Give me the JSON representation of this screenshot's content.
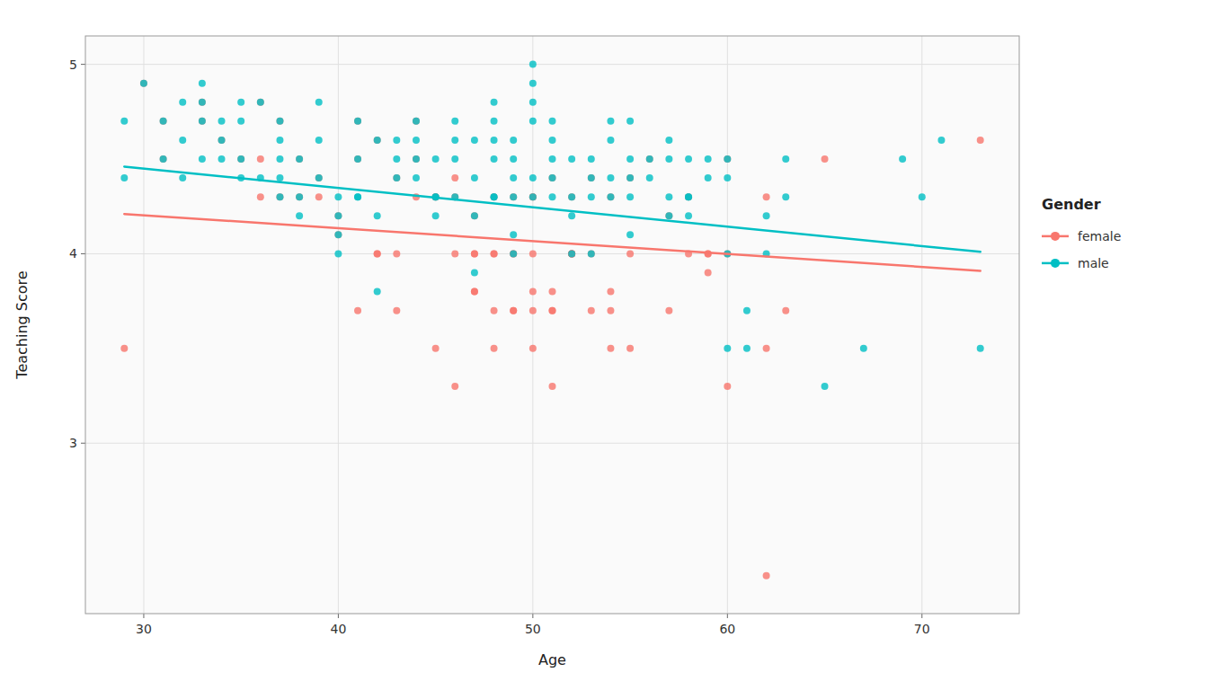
{
  "chart_data": {
    "type": "scatter",
    "xlabel": "Age",
    "ylabel": "Teaching Score",
    "legend_title": "Gender",
    "xlim": [
      27,
      75
    ],
    "ylim": [
      2.1,
      5.15
    ],
    "xticks": [
      30,
      40,
      50,
      60,
      70
    ],
    "yticks": [
      3,
      4,
      5
    ],
    "grid": true,
    "legend": "right",
    "series": [
      {
        "name": "female",
        "type": "scatter",
        "color": "#F8766D",
        "x": [
          36,
          36,
          39,
          41,
          41,
          42,
          42,
          43,
          43,
          44,
          44,
          45,
          45,
          46,
          46,
          46,
          47,
          47,
          47,
          47,
          48,
          48,
          48,
          48,
          49,
          49,
          49,
          49,
          50,
          50,
          50,
          50,
          50,
          51,
          51,
          51,
          51,
          52,
          52,
          52,
          52,
          53,
          53,
          54,
          54,
          54,
          55,
          55,
          57,
          58,
          59,
          59,
          60,
          60,
          62,
          62,
          29,
          30,
          31,
          31,
          33,
          33,
          34,
          35,
          36,
          37,
          37,
          38,
          38,
          39,
          40,
          40,
          41,
          42,
          43,
          44,
          45,
          46,
          47,
          48,
          49,
          50,
          51,
          52,
          53,
          54,
          55,
          56,
          57,
          58,
          59,
          60,
          62,
          63,
          65,
          73
        ],
        "values": [
          4.3,
          4.5,
          4.3,
          4.5,
          3.7,
          4.0,
          4.0,
          3.7,
          4.0,
          4.5,
          4.3,
          3.5,
          4.3,
          3.3,
          4.0,
          4.4,
          3.8,
          3.8,
          4.0,
          4.0,
          3.5,
          3.7,
          4.0,
          4.0,
          3.7,
          3.7,
          4.0,
          4.3,
          3.5,
          3.7,
          3.8,
          4.0,
          4.3,
          3.3,
          3.7,
          3.7,
          3.8,
          4.0,
          4.0,
          4.0,
          4.3,
          3.7,
          4.0,
          3.5,
          3.7,
          3.8,
          3.5,
          4.0,
          3.7,
          4.0,
          4.0,
          3.9,
          3.3,
          4.0,
          3.5,
          2.3,
          3.5,
          4.9,
          4.7,
          4.5,
          4.7,
          4.8,
          4.6,
          4.5,
          4.8,
          4.7,
          4.3,
          4.3,
          4.5,
          4.4,
          4.1,
          4.2,
          4.7,
          4.6,
          4.4,
          4.7,
          4.3,
          4.3,
          4.2,
          4.3,
          4.0,
          4.3,
          4.4,
          4.0,
          4.4,
          4.3,
          4.4,
          4.5,
          4.2,
          4.3,
          4.0,
          4.5,
          4.3,
          3.7,
          4.5,
          4.6
        ]
      },
      {
        "name": "male",
        "type": "scatter",
        "color": "#00BFC4",
        "x": [
          29,
          29,
          30,
          31,
          31,
          32,
          32,
          32,
          33,
          33,
          33,
          33,
          34,
          34,
          34,
          35,
          35,
          35,
          35,
          36,
          36,
          37,
          37,
          37,
          37,
          37,
          38,
          38,
          38,
          39,
          39,
          39,
          40,
          40,
          40,
          40,
          41,
          41,
          41,
          41,
          42,
          42,
          42,
          43,
          43,
          43,
          44,
          44,
          44,
          44,
          45,
          45,
          45,
          45,
          46,
          46,
          46,
          46,
          47,
          47,
          47,
          47,
          48,
          48,
          48,
          48,
          48,
          48,
          49,
          49,
          49,
          49,
          49,
          49,
          50,
          50,
          50,
          50,
          50,
          50,
          51,
          51,
          51,
          51,
          51,
          52,
          52,
          52,
          52,
          53,
          53,
          53,
          53,
          54,
          54,
          54,
          54,
          55,
          55,
          55,
          55,
          55,
          56,
          56,
          57,
          57,
          57,
          57,
          58,
          58,
          58,
          58,
          59,
          59,
          60,
          60,
          60,
          60,
          61,
          61,
          62,
          62,
          63,
          63,
          65,
          67,
          69,
          70,
          71,
          73
        ],
        "values": [
          4.7,
          4.4,
          4.9,
          4.7,
          4.5,
          4.6,
          4.4,
          4.8,
          4.7,
          4.5,
          4.9,
          4.8,
          4.6,
          4.7,
          4.5,
          4.5,
          4.8,
          4.4,
          4.7,
          4.8,
          4.4,
          4.7,
          4.3,
          4.5,
          4.6,
          4.4,
          4.3,
          4.2,
          4.5,
          4.4,
          4.6,
          4.8,
          4.1,
          4.3,
          4.0,
          4.2,
          4.7,
          4.3,
          4.3,
          4.5,
          4.6,
          3.8,
          4.2,
          4.4,
          4.6,
          4.5,
          4.7,
          4.5,
          4.4,
          4.6,
          4.3,
          4.5,
          4.3,
          4.2,
          4.3,
          4.6,
          4.5,
          4.7,
          4.2,
          3.9,
          4.4,
          4.6,
          4.3,
          4.5,
          4.8,
          4.3,
          4.7,
          4.6,
          4.0,
          4.4,
          4.3,
          4.6,
          4.1,
          4.5,
          5.0,
          4.7,
          4.3,
          4.9,
          4.4,
          4.8,
          4.4,
          4.3,
          4.7,
          4.5,
          4.6,
          4.0,
          4.2,
          4.3,
          4.5,
          4.4,
          4.0,
          4.3,
          4.5,
          4.3,
          4.7,
          4.4,
          4.6,
          4.4,
          4.3,
          4.5,
          4.1,
          4.7,
          4.5,
          4.4,
          4.2,
          4.3,
          4.5,
          4.6,
          4.3,
          4.5,
          4.2,
          4.3,
          4.4,
          4.5,
          4.0,
          3.5,
          4.4,
          4.5,
          3.7,
          3.5,
          4.2,
          4.0,
          4.5,
          4.3,
          3.3,
          3.5,
          4.5,
          4.3,
          4.6,
          3.5
        ]
      },
      {
        "type": "line",
        "color": "#F8766D",
        "x": [
          29,
          73
        ],
        "values": [
          4.21,
          3.91
        ]
      },
      {
        "type": "line",
        "color": "#00BFC4",
        "x": [
          29,
          73
        ],
        "values": [
          4.46,
          4.01
        ]
      }
    ]
  }
}
